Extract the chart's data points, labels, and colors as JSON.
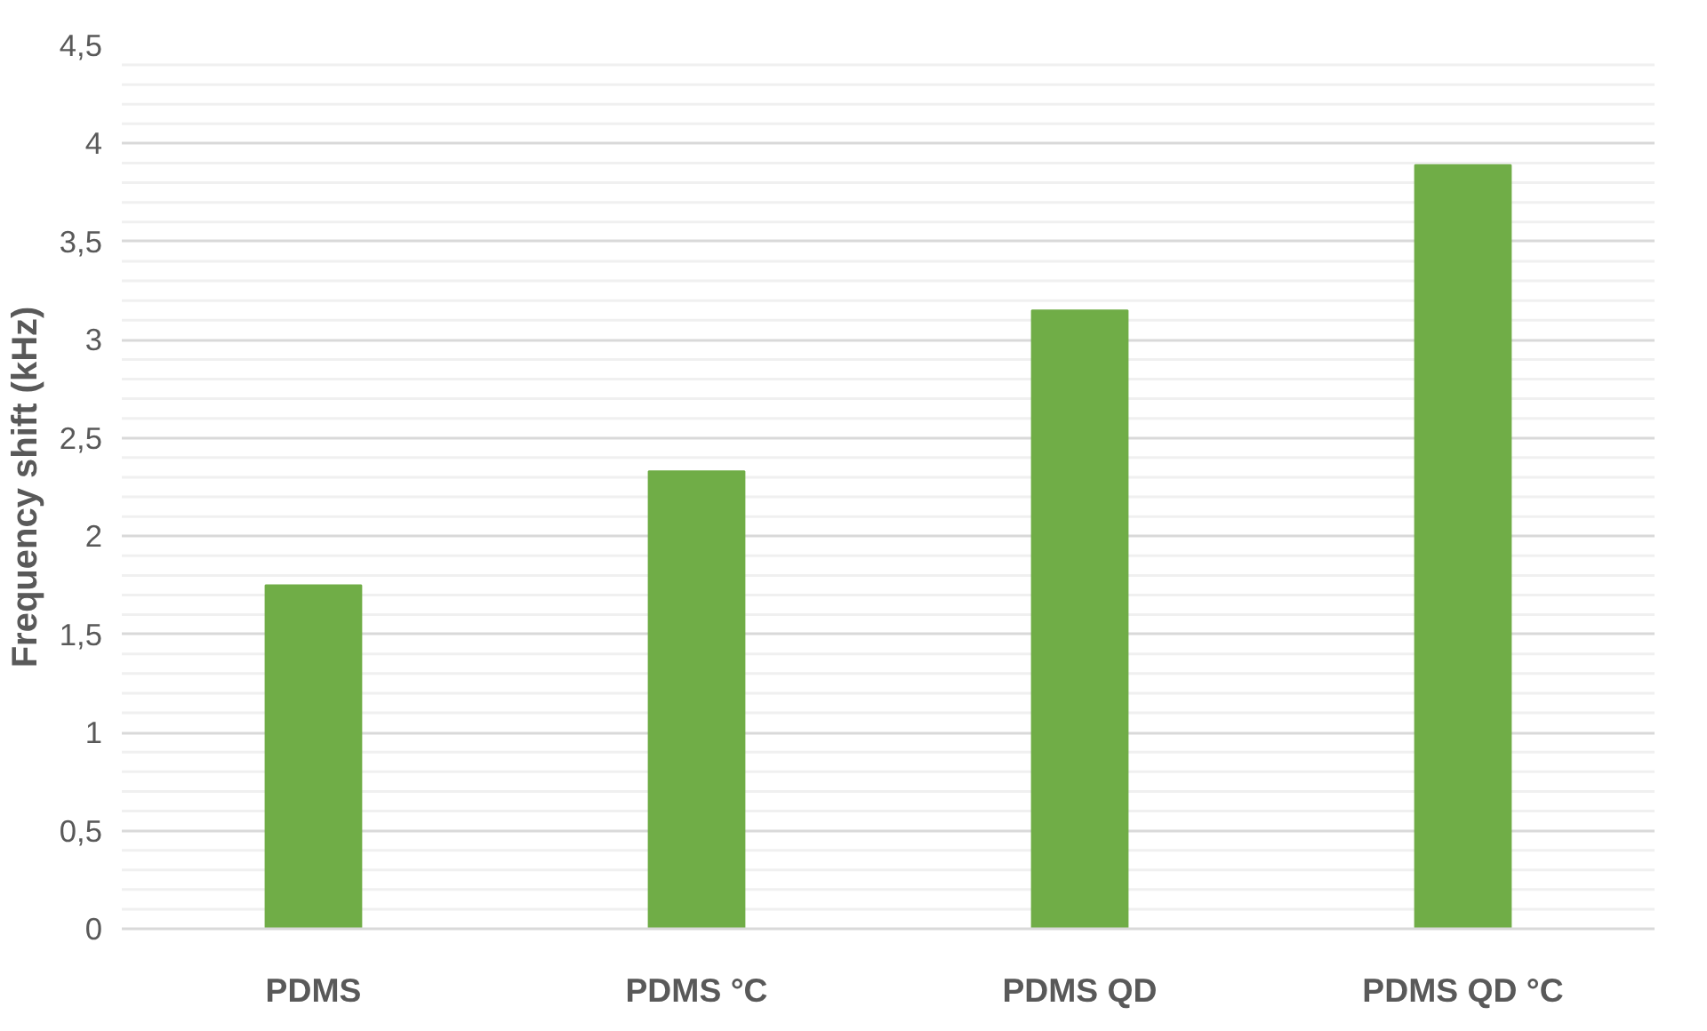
{
  "chart_data": {
    "type": "bar",
    "ylabel": "Frequency shift (kHz)",
    "categories": [
      "PDMS",
      "PDMS °C",
      "PDMS QD",
      "PDMS QD °C"
    ],
    "values": [
      1.75,
      2.33,
      3.15,
      3.89
    ],
    "color": "#70ad47",
    "ylim": [
      0,
      4.5
    ],
    "yticks": [
      0,
      {
        "value": 0.1,
        "label": null
      },
      {
        "value": 0.2,
        "label": null
      },
      {
        "value": 0.3,
        "label": null
      },
      {
        "value": 0.4,
        "label": null
      },
      {
        "value": 0.5,
        "label": "0,5"
      },
      {
        "value": 0.6,
        "label": null
      },
      {
        "value": 0.7,
        "label": null
      },
      {
        "value": 0.8,
        "label": null
      },
      {
        "value": 0.9,
        "label": null
      },
      1,
      {
        "value": 1.1,
        "label": null
      },
      {
        "value": 1.2,
        "label": null
      },
      {
        "value": 1.3,
        "label": null
      },
      {
        "value": 1.4,
        "label": null
      },
      {
        "value": 1.5,
        "label": "1,5"
      },
      {
        "value": 1.6,
        "label": null
      },
      {
        "value": 1.7,
        "label": null
      },
      {
        "value": 1.8,
        "label": null
      },
      {
        "value": 1.9,
        "label": null
      },
      2,
      {
        "value": 2.1,
        "label": null
      },
      {
        "value": 2.2,
        "label": null
      },
      {
        "value": 2.3,
        "label": null
      },
      {
        "value": 2.4,
        "label": null
      },
      {
        "value": 2.5,
        "label": "2,5"
      },
      {
        "value": 2.6,
        "label": null
      },
      {
        "value": 2.7,
        "label": null
      },
      {
        "value": 2.8,
        "label": null
      },
      {
        "value": 2.9,
        "label": null
      },
      3,
      {
        "value": 3.1,
        "label": null
      },
      {
        "value": 3.2,
        "label": null
      },
      {
        "value": 3.3,
        "label": null
      },
      {
        "value": 3.4,
        "label": null
      },
      {
        "value": 3.5,
        "label": "3,5"
      },
      {
        "value": 3.6,
        "label": null
      },
      {
        "value": 3.7,
        "label": null
      },
      {
        "value": 3.8,
        "label": null
      },
      {
        "value": 3.9,
        "label": null
      },
      4,
      {
        "value": 4.1,
        "label": null
      },
      {
        "value": 4.2,
        "label": null
      },
      {
        "value": 4.3,
        "label": null
      },
      {
        "value": 4.4,
        "label": null
      },
      {
        "value": 4.5,
        "label": "4,5"
      }
    ],
    "grid": "y"
  }
}
